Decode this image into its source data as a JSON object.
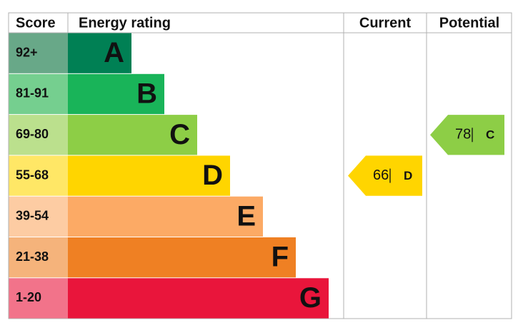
{
  "header": {
    "score": "Score",
    "rating": "Energy rating",
    "current": "Current",
    "potential": "Potential"
  },
  "bands": [
    {
      "score": "92+",
      "letter": "A",
      "color": "#008054",
      "score_color": "#68a888"
    },
    {
      "score": "81-91",
      "letter": "B",
      "color": "#19b459",
      "score_color": "#75cf8f"
    },
    {
      "score": "69-80",
      "letter": "C",
      "color": "#8dce46",
      "score_color": "#bbe08d"
    },
    {
      "score": "55-68",
      "letter": "D",
      "color": "#ffd500",
      "score_color": "#ffe766"
    },
    {
      "score": "39-54",
      "letter": "E",
      "color": "#fcaa65",
      "score_color": "#fdcca3"
    },
    {
      "score": "21-38",
      "letter": "F",
      "color": "#ef8023",
      "score_color": "#f5b37b"
    },
    {
      "score": "1-20",
      "letter": "G",
      "color": "#e9153b",
      "score_color": "#f2738a"
    }
  ],
  "current": {
    "value": 66,
    "letter": "D"
  },
  "potential": {
    "value": 78,
    "letter": "C"
  }
}
